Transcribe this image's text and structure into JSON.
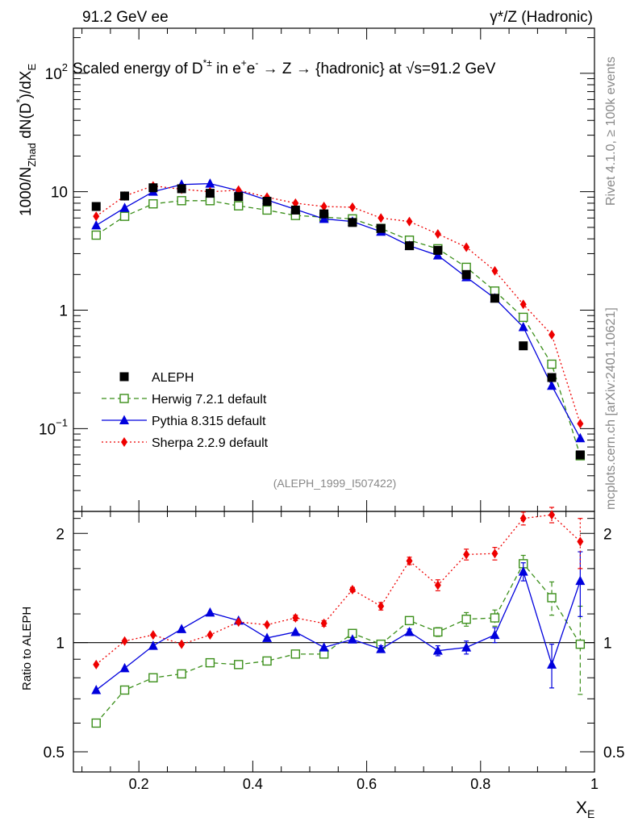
{
  "header": {
    "left": "91.2 GeV ee",
    "right": "γ*/Z (Hadronic)"
  },
  "title": {
    "prefix": "Scaled energy of D",
    "sup": "*±",
    "mid": " in e",
    "sup_plus": "+",
    "e2": "e",
    "sup_minus": "-",
    "arrow_part": " →  Z → {hadronic} at ",
    "sqrt": "√",
    "s_part": "s=91.2 GeV"
  },
  "side_labels": {
    "rivet": "Rivet 4.1.0, ≥ 100k events",
    "mcplots": "mcplots.cern.ch [arXiv:2401.10621]"
  },
  "analysis_id": "(ALEPH_1999_I507422)",
  "y_label_main": {
    "a": "1000/N",
    "sub": "Zhad",
    "b": " dN(D",
    "sup": "*",
    "c": ")/dX",
    "sub2": "E"
  },
  "y_label_ratio": "Ratio to ALEPH",
  "x_label": {
    "a": "X",
    "sub": "E"
  },
  "main_ticks": [
    {
      "value": 100,
      "base": "10",
      "exp": "2"
    },
    {
      "value": 10,
      "label": "10"
    },
    {
      "value": 1,
      "label": "1"
    },
    {
      "value": 0.1,
      "base": "10",
      "exp": "−1"
    }
  ],
  "ratio_ticks": [
    {
      "value": 2,
      "label": "2"
    },
    {
      "value": 1,
      "label": "1"
    },
    {
      "value": 0.5,
      "label": "0.5"
    }
  ],
  "x_ticks": [
    "0.2",
    "0.4",
    "0.6",
    "0.8",
    "1"
  ],
  "chart_data": {
    "type": "scatter",
    "x": [
      0.125,
      0.175,
      0.225,
      0.275,
      0.325,
      0.375,
      0.425,
      0.475,
      0.525,
      0.575,
      0.625,
      0.675,
      0.725,
      0.775,
      0.825,
      0.875,
      0.925,
      0.975
    ],
    "xlim": [
      0.085,
      1.0
    ],
    "ylim": [
      0.02,
      240
    ],
    "ratio_ylim": [
      0.44,
      2.3
    ],
    "yscale": "log",
    "legend_position": "middle-left",
    "series": [
      {
        "name": "ALEPH",
        "color": "#000000",
        "marker": "square",
        "line": "none",
        "values": [
          7.5,
          9.2,
          10.8,
          10.6,
          9.7,
          9.1,
          8.3,
          7.0,
          6.5,
          5.5,
          4.9,
          3.5,
          3.2,
          2.0,
          1.26,
          0.5,
          0.27,
          0.06
        ]
      },
      {
        "name": "Herwig 7.2.1 default",
        "color": "#3b8f1a",
        "marker": "open-square",
        "line": "dashed",
        "values": [
          4.3,
          6.2,
          7.9,
          8.4,
          8.4,
          7.6,
          7.0,
          6.3,
          6.1,
          5.9,
          4.9,
          3.9,
          3.3,
          2.3,
          1.45,
          0.87,
          0.35,
          0.059
        ],
        "ratio": [
          0.6,
          0.74,
          0.8,
          0.82,
          0.88,
          0.87,
          0.89,
          0.93,
          0.93,
          1.06,
          0.99,
          1.15,
          1.07,
          1.16,
          1.17,
          1.65,
          1.33,
          0.99
        ],
        "ratio_err": [
          0.01,
          0.01,
          0.01,
          0.01,
          0.01,
          0.01,
          0.01,
          0.01,
          0.01,
          0.01,
          0.01,
          0.02,
          0.03,
          0.05,
          0.06,
          0.09,
          0.14,
          0.27
        ]
      },
      {
        "name": "Pythia 8.315 default",
        "color": "#0000dd",
        "marker": "triangle",
        "line": "solid",
        "values": [
          5.2,
          7.3,
          10.0,
          11.5,
          11.7,
          10.2,
          8.5,
          7.1,
          5.9,
          5.6,
          4.6,
          3.5,
          2.9,
          1.9,
          1.26,
          0.72,
          0.23,
          0.083
        ],
        "ratio": [
          0.74,
          0.85,
          0.98,
          1.09,
          1.21,
          1.15,
          1.03,
          1.07,
          0.97,
          1.02,
          0.96,
          1.07,
          0.95,
          0.97,
          1.05,
          1.57,
          0.87,
          1.48
        ],
        "ratio_err": [
          0.01,
          0.01,
          0.01,
          0.01,
          0.01,
          0.01,
          0.01,
          0.01,
          0.01,
          0.01,
          0.02,
          0.02,
          0.03,
          0.04,
          0.05,
          0.09,
          0.12,
          0.3
        ]
      },
      {
        "name": "Sherpa 2.2.9 default",
        "color": "#ee0000",
        "marker": "diamond",
        "line": "dotted",
        "values": [
          6.2,
          9.2,
          11.2,
          10.5,
          10.0,
          10.3,
          9.0,
          8.0,
          7.5,
          7.4,
          6.0,
          5.6,
          4.4,
          3.4,
          2.15,
          1.12,
          0.62,
          0.11
        ],
        "ratio": [
          0.87,
          1.01,
          1.05,
          0.99,
          1.05,
          1.14,
          1.12,
          1.17,
          1.13,
          1.4,
          1.26,
          1.68,
          1.44,
          1.75,
          1.76,
          2.2,
          2.25,
          1.9
        ],
        "ratio_err": [
          0.01,
          0.01,
          0.01,
          0.01,
          0.01,
          0.01,
          0.01,
          0.02,
          0.02,
          0.02,
          0.03,
          0.04,
          0.05,
          0.06,
          0.07,
          0.09,
          0.11,
          0.3
        ]
      }
    ]
  }
}
